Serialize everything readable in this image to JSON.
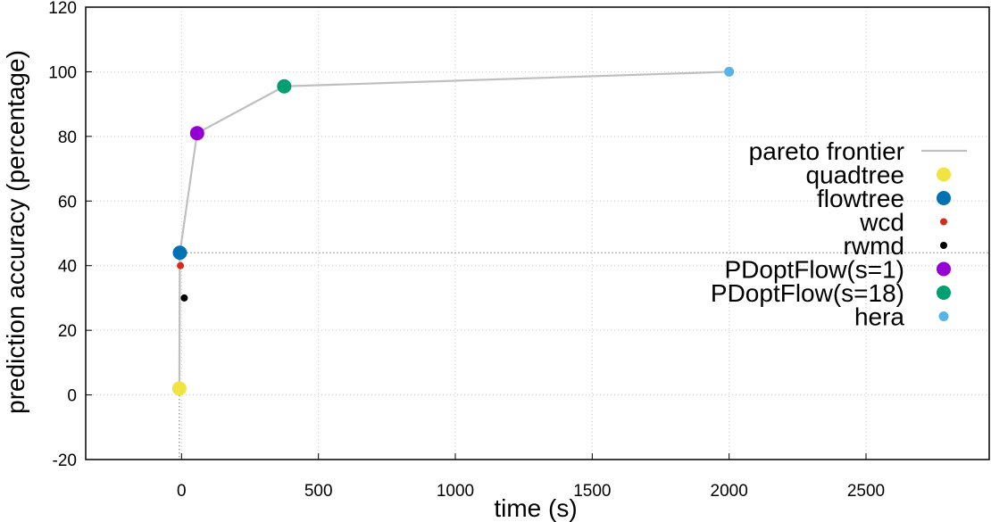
{
  "chart_data": {
    "type": "scatter",
    "title": "",
    "xlabel": "time (s)",
    "ylabel": "prediction accuracy (percentage)",
    "xlim": [
      -350,
      2950
    ],
    "ylim": [
      -20,
      120
    ],
    "xticks": [
      0,
      500,
      1000,
      1500,
      2000,
      2500
    ],
    "xtick_labels": [
      "0",
      "500",
      "1000",
      "1500",
      "2000",
      "2500"
    ],
    "yticks": [
      -20,
      0,
      20,
      40,
      60,
      80,
      100,
      120
    ],
    "ytick_labels": [
      "-20",
      "0",
      "20",
      "40",
      "60",
      "80",
      "100",
      "120"
    ],
    "grid": true,
    "legend_position": "right",
    "pareto": {
      "name": "pareto frontier",
      "color": "#bfbfbf",
      "x": [
        -8,
        -6,
        57,
        375,
        2000
      ],
      "y": [
        2,
        44,
        81,
        95.5,
        100
      ]
    },
    "series": [
      {
        "name": "quadtree",
        "color": "#f0e442",
        "size": "large",
        "x": [
          -8
        ],
        "y": [
          2
        ]
      },
      {
        "name": "flowtree",
        "color": "#0072b2",
        "size": "large",
        "x": [
          -6
        ],
        "y": [
          44
        ]
      },
      {
        "name": "wcd",
        "color": "#d62a1b",
        "size": "small",
        "x": [
          -4
        ],
        "y": [
          40
        ]
      },
      {
        "name": "rwmd",
        "color": "#000000",
        "size": "small",
        "x": [
          10
        ],
        "y": [
          30
        ]
      },
      {
        "name": "PDoptFlow(s=1)",
        "color": "#9400d3",
        "size": "large",
        "x": [
          57
        ],
        "y": [
          81
        ]
      },
      {
        "name": "PDoptFlow(s=18)",
        "color": "#009e73",
        "size": "large",
        "x": [
          375
        ],
        "y": [
          95.5
        ]
      },
      {
        "name": "hera",
        "color": "#56b4e9",
        "size": "medium",
        "x": [
          2000
        ],
        "y": [
          100
        ]
      }
    ]
  }
}
